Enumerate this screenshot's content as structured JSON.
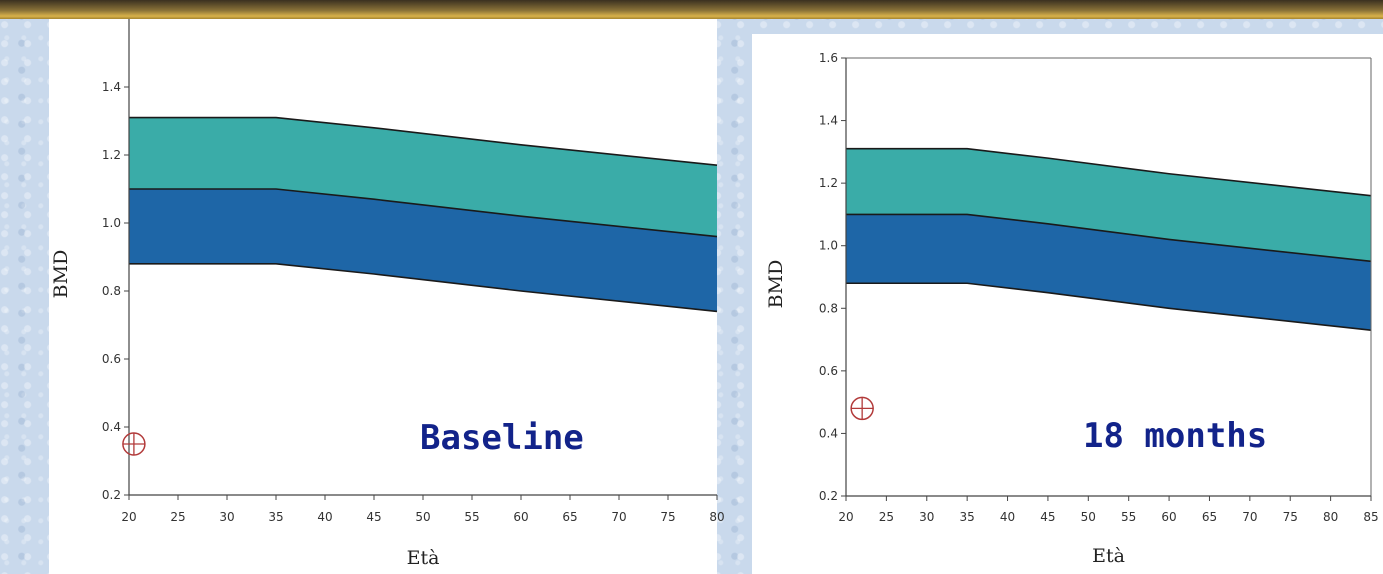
{
  "chart_data": [
    {
      "type": "area",
      "xlabel": "Età",
      "ylabel": "BMD",
      "annotation": "Baseline",
      "xlim": [
        20,
        80
      ],
      "ylim": [
        0.2,
        1.6
      ],
      "x_ticks": [
        20,
        25,
        30,
        35,
        40,
        45,
        50,
        55,
        60,
        65,
        70,
        75,
        80
      ],
      "y_ticks": [
        0.2,
        0.4,
        0.6,
        0.8,
        1.0,
        1.2,
        1.4
      ],
      "y_tick_labels": [
        "0.2",
        "0.4",
        "0.6",
        "0.8",
        "1.0",
        "1.2",
        "1.4"
      ],
      "x_tick_labels": [
        "20",
        "25",
        "30",
        "35",
        "40",
        "45",
        "50",
        "55",
        "60",
        "65",
        "70",
        "75",
        "80"
      ],
      "band_x": [
        20,
        35,
        45,
        60,
        80
      ],
      "series": [
        {
          "upper": [
            1.31,
            1.31,
            1.28,
            1.23,
            1.17
          ],
          "lower": [
            1.1,
            1.1,
            1.07,
            1.02,
            0.96
          ],
          "color": "#3aaca8"
        },
        {
          "upper": [
            1.1,
            1.1,
            1.07,
            1.02,
            0.96
          ],
          "lower": [
            0.88,
            0.88,
            0.85,
            0.8,
            0.74
          ],
          "color": "#1e66a7"
        }
      ],
      "points": [
        {
          "x": 20.5,
          "y": 0.35
        }
      ],
      "grid": false
    },
    {
      "type": "area",
      "xlabel": "Età",
      "ylabel": "BMD",
      "annotation": "18 months",
      "xlim": [
        20,
        85
      ],
      "ylim": [
        0.2,
        1.6
      ],
      "x_ticks": [
        20,
        25,
        30,
        35,
        40,
        45,
        50,
        55,
        60,
        65,
        70,
        75,
        80,
        85
      ],
      "y_ticks": [
        0.2,
        0.4,
        0.6,
        0.8,
        1.0,
        1.2,
        1.4,
        1.6
      ],
      "y_tick_labels": [
        "0.2",
        "0.4",
        "0.6",
        "0.8",
        "1.0",
        "1.2",
        "1.4",
        "1.6"
      ],
      "x_tick_labels": [
        "20",
        "25",
        "30",
        "35",
        "40",
        "45",
        "50",
        "55",
        "60",
        "65",
        "70",
        "75",
        "80",
        "85"
      ],
      "band_x": [
        20,
        35,
        45,
        60,
        85
      ],
      "series": [
        {
          "upper": [
            1.31,
            1.31,
            1.28,
            1.23,
            1.16
          ],
          "lower": [
            1.1,
            1.1,
            1.07,
            1.02,
            0.95
          ],
          "color": "#3aaca8"
        },
        {
          "upper": [
            1.1,
            1.1,
            1.07,
            1.02,
            0.95
          ],
          "lower": [
            0.88,
            0.88,
            0.85,
            0.8,
            0.73
          ],
          "color": "#1e66a7"
        }
      ],
      "points": [
        {
          "x": 22,
          "y": 0.48
        }
      ],
      "grid": false
    }
  ]
}
